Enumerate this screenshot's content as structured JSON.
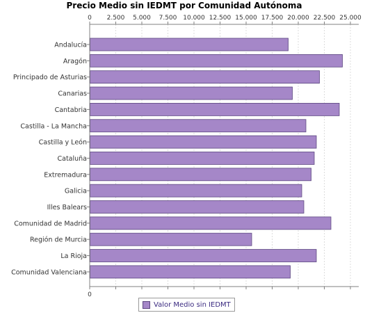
{
  "chart_data": {
    "type": "bar",
    "orientation": "horizontal",
    "title": "Precio Medio sin IEDMT por Comunidad Autónoma",
    "categories": [
      "Andalucía",
      "Aragón",
      "Principado de Asturias",
      "Canarias",
      "Cantabria",
      "Castilla - La Mancha",
      "Castilla y León",
      "Cataluña",
      "Extremadura",
      "Galicia",
      "Illes Balears",
      "Comunidad de Madrid",
      "Región de Murcia",
      "La Rioja",
      "Comunidad Valenciana"
    ],
    "series": [
      {
        "name": "Valor Medio sin IEDMT",
        "values": [
          19000,
          24200,
          22000,
          19400,
          23900,
          20700,
          21700,
          21500,
          21200,
          20300,
          20500,
          23100,
          15500,
          21700,
          19200
        ]
      }
    ],
    "x_ticks": [
      "0",
      "2.500",
      "5.000",
      "7.500",
      "10.000",
      "12.500",
      "15.000",
      "17.500",
      "20.000",
      "22.500",
      "25.000"
    ],
    "xlim": [
      0,
      25800
    ],
    "tick_step": 2500,
    "grid": true,
    "legend_position": "bottom",
    "colors": {
      "bar_fill": "#a587c8",
      "bar_stroke": "#5c4680",
      "grid": "#dcdcdc",
      "axis": "#808080"
    }
  }
}
